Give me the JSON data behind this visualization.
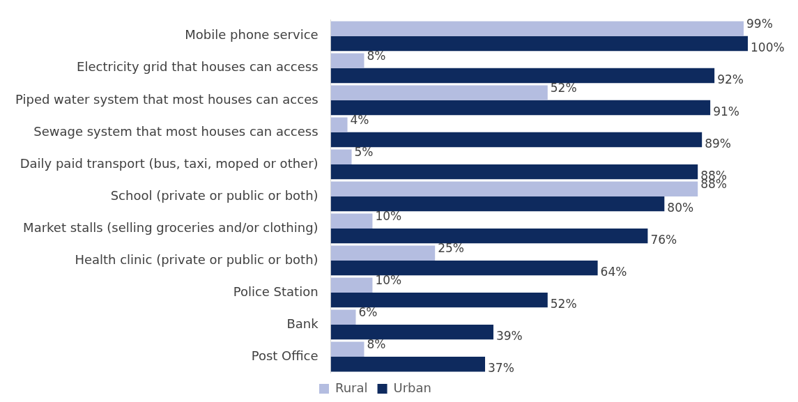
{
  "chart_data": {
    "type": "bar",
    "orientation": "horizontal",
    "legend": "bottom",
    "categories": [
      "Mobile phone service",
      "Electricity grid that houses can access",
      "Piped water system that most houses can acces",
      "Sewage system that most houses can access",
      "Daily paid transport (bus, taxi, moped or other)",
      "School (private or public or both)",
      "Market stalls (selling groceries and/or clothing)",
      "Health clinic (private or public or both)",
      "Police Station",
      "Bank",
      "Post Office"
    ],
    "series": [
      {
        "name": "Rural",
        "color": "#b4bde0",
        "values": [
          99,
          8,
          52,
          4,
          5,
          88,
          10,
          25,
          10,
          6,
          8
        ],
        "value_labels": [
          "99%",
          "8%",
          "52%",
          "4%",
          "5%",
          "88%",
          "10%",
          "25%",
          "10%",
          "6%",
          "8%"
        ]
      },
      {
        "name": "Urban",
        "color": "#0e2a5e",
        "values": [
          100,
          92,
          91,
          89,
          88,
          80,
          76,
          64,
          52,
          39,
          37
        ],
        "value_labels": [
          "100%",
          "92%",
          "91%",
          "89%",
          "88%",
          "80%",
          "76%",
          "64%",
          "52%",
          "39%",
          "37%"
        ]
      }
    ]
  }
}
